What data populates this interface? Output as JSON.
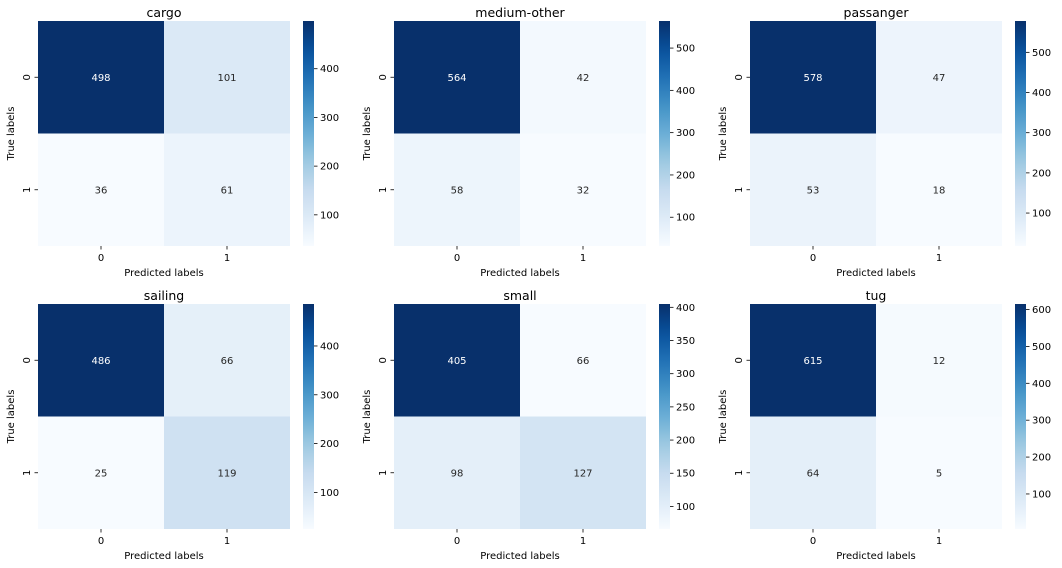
{
  "chart_data": [
    {
      "type": "heatmap",
      "title": "cargo",
      "xlabel": "Predicted labels",
      "ylabel": "True labels",
      "x_categories": [
        "0",
        "1"
      ],
      "y_categories": [
        "0",
        "1"
      ],
      "values": [
        [
          498,
          101
        ],
        [
          36,
          61
        ]
      ],
      "colorbar": {
        "ticks": [
          "100",
          "200",
          "300",
          "400"
        ],
        "vmin": 36,
        "vmax": 498
      }
    },
    {
      "type": "heatmap",
      "title": "medium-other",
      "xlabel": "Predicted labels",
      "ylabel": "True labels",
      "x_categories": [
        "0",
        "1"
      ],
      "y_categories": [
        "0",
        "1"
      ],
      "values": [
        [
          564,
          42
        ],
        [
          58,
          32
        ]
      ],
      "colorbar": {
        "ticks": [
          "100",
          "200",
          "300",
          "400",
          "500"
        ],
        "vmin": 32,
        "vmax": 564
      }
    },
    {
      "type": "heatmap",
      "title": "passanger",
      "xlabel": "Predicted labels",
      "ylabel": "True labels",
      "x_categories": [
        "0",
        "1"
      ],
      "y_categories": [
        "0",
        "1"
      ],
      "values": [
        [
          578,
          47
        ],
        [
          53,
          18
        ]
      ],
      "colorbar": {
        "ticks": [
          "100",
          "200",
          "300",
          "400",
          "500"
        ],
        "vmin": 18,
        "vmax": 578
      }
    },
    {
      "type": "heatmap",
      "title": "sailing",
      "xlabel": "Predicted labels",
      "ylabel": "True labels",
      "x_categories": [
        "0",
        "1"
      ],
      "y_categories": [
        "0",
        "1"
      ],
      "values": [
        [
          486,
          66
        ],
        [
          25,
          119
        ]
      ],
      "colorbar": {
        "ticks": [
          "100",
          "200",
          "300",
          "400"
        ],
        "vmin": 25,
        "vmax": 486
      }
    },
    {
      "type": "heatmap",
      "title": "small",
      "xlabel": "Predicted labels",
      "ylabel": "True labels",
      "x_categories": [
        "0",
        "1"
      ],
      "y_categories": [
        "0",
        "1"
      ],
      "values": [
        [
          405,
          66
        ],
        [
          98,
          127
        ]
      ],
      "colorbar": {
        "ticks": [
          "100",
          "150",
          "200",
          "250",
          "300",
          "350",
          "400"
        ],
        "vmin": 66,
        "vmax": 405
      }
    },
    {
      "type": "heatmap",
      "title": "tug",
      "xlabel": "Predicted labels",
      "ylabel": "True labels",
      "x_categories": [
        "0",
        "1"
      ],
      "y_categories": [
        "0",
        "1"
      ],
      "values": [
        [
          615,
          12
        ],
        [
          64,
          5
        ]
      ],
      "colorbar": {
        "ticks": [
          "100",
          "200",
          "300",
          "400",
          "500",
          "600"
        ],
        "vmin": 5,
        "vmax": 615
      }
    }
  ],
  "colors": {
    "dark": "#08306b",
    "light": "#f7fbff",
    "label_dark": "#262626",
    "label_light": "#ffffff"
  }
}
